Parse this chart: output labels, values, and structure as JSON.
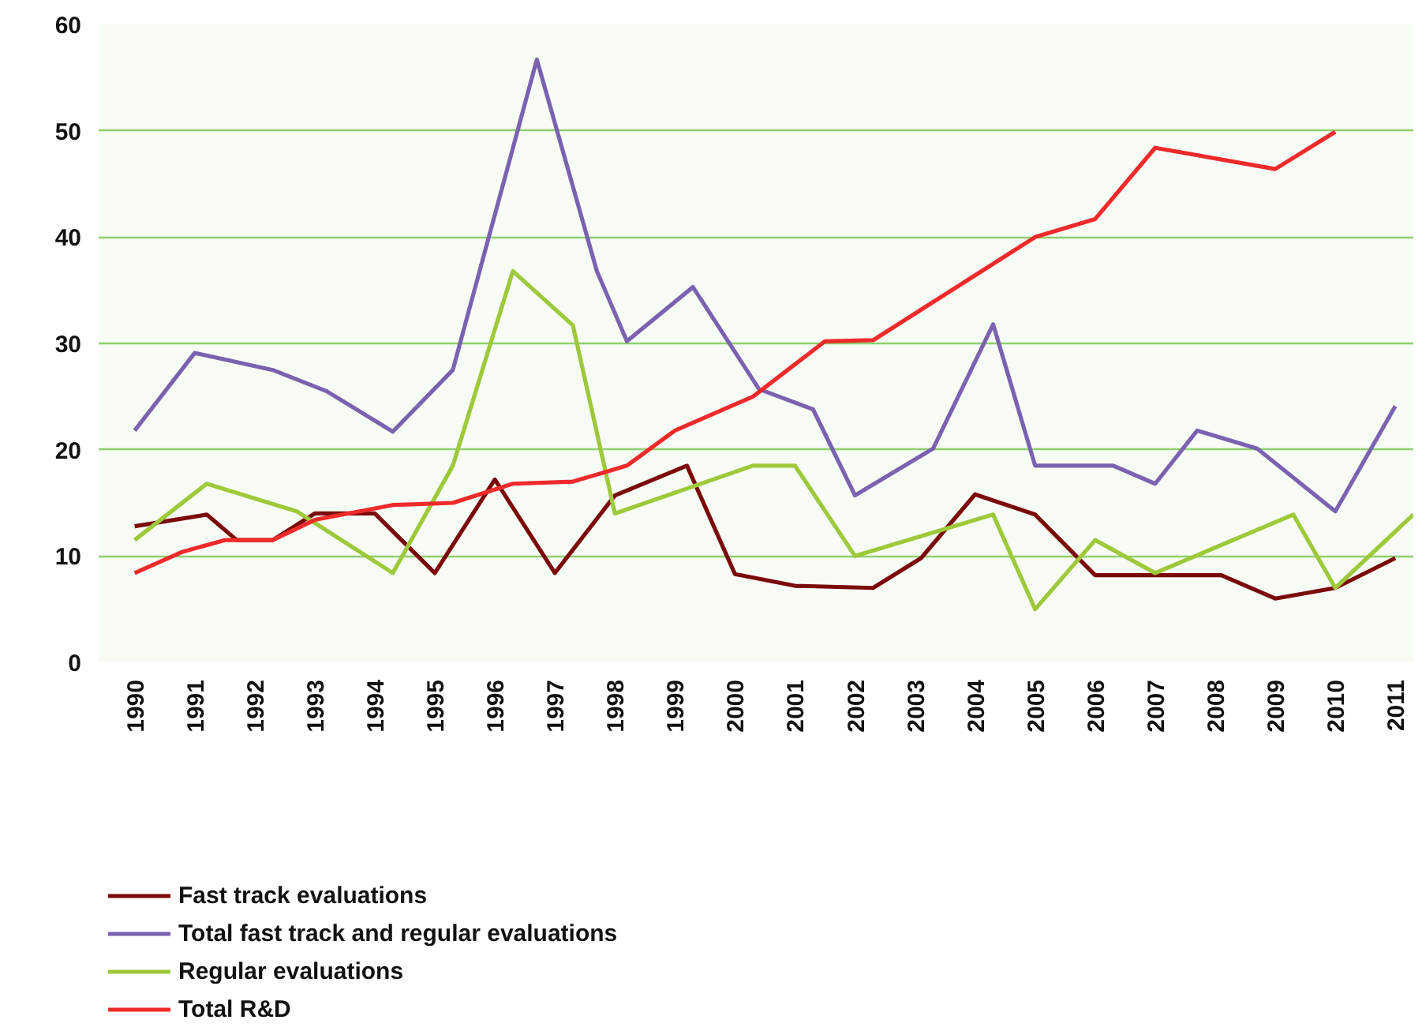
{
  "chart_data": {
    "type": "line",
    "xlim": [
      1989.4,
      2011.3
    ],
    "xticks": [
      1990,
      1991,
      1992,
      1993,
      1994,
      1995,
      1996,
      1997,
      1998,
      1999,
      2000,
      2001,
      2002,
      2003,
      2004,
      2005,
      2006,
      2007,
      2008,
      2009,
      2010,
      2011
    ],
    "ylim": [
      0,
      60
    ],
    "yticks": [
      0,
      10,
      20,
      30,
      40,
      50,
      60
    ],
    "grid": "y",
    "legend": "bottom",
    "series": [
      {
        "name": "Fast track evaluations",
        "color": "#7b0a0a",
        "x": [
          1990,
          1991.2,
          1991.7,
          1992.3,
          1993,
          1994,
          1995,
          1996,
          1997,
          1998,
          1999.2,
          2000,
          2001,
          2002.3,
          2003.1,
          2004,
          2005,
          2006,
          2008.1,
          2009,
          2010,
          2011
        ],
        "values": [
          12.8,
          13.9,
          11.5,
          11.5,
          14.0,
          14.0,
          8.4,
          17.2,
          8.4,
          15.7,
          18.5,
          8.3,
          7.2,
          7.0,
          9.8,
          15.8,
          13.9,
          8.2,
          8.2,
          6.0,
          7.0,
          9.8
        ]
      },
      {
        "name": "Total fast track and regular evaluations",
        "color": "#7b62b0",
        "x": [
          1990,
          1991,
          1992.3,
          1993.2,
          1994.3,
          1995.3,
          1996.7,
          1997.7,
          1998.2,
          1999.3,
          2000.4,
          2001.3,
          2002,
          2003.3,
          2004.3,
          2005,
          2006.3,
          2007,
          2007.7,
          2008.7,
          2010,
          2011
        ],
        "values": [
          21.8,
          29.1,
          27.5,
          25.5,
          21.7,
          27.5,
          56.7,
          36.8,
          30.2,
          35.3,
          25.7,
          23.8,
          15.7,
          20.1,
          31.8,
          18.5,
          18.5,
          16.8,
          21.8,
          20.1,
          14.2,
          24.1
        ]
      },
      {
        "name": "Regular evaluations",
        "color": "#9dc93a",
        "x": [
          1990,
          1991.2,
          1992.7,
          1994.3,
          1995.3,
          1996.3,
          1997.3,
          1998,
          2000.3,
          2001,
          2002,
          2004.3,
          2005,
          2006,
          2007,
          2009.3,
          2010,
          2011.3
        ],
        "values": [
          11.5,
          16.8,
          14.2,
          8.4,
          18.5,
          36.8,
          31.7,
          14.0,
          18.5,
          18.5,
          10.0,
          13.9,
          5.0,
          11.5,
          8.4,
          13.9,
          7.0,
          13.9
        ]
      },
      {
        "name": "Total R&D",
        "color": "#ee2a2a",
        "x": [
          1990,
          1990.8,
          1991.5,
          1992.3,
          1993,
          1994.3,
          1995.3,
          1996.3,
          1997.3,
          1998.2,
          1999,
          2000.3,
          2001.5,
          2002.3,
          2005,
          2006,
          2007,
          2009,
          2010
        ],
        "values": [
          8.4,
          10.4,
          11.5,
          11.5,
          13.4,
          14.8,
          15.0,
          16.8,
          17.0,
          18.5,
          21.8,
          25.0,
          30.2,
          30.3,
          40.0,
          41.7,
          48.4,
          46.4,
          49.9
        ]
      }
    ]
  }
}
